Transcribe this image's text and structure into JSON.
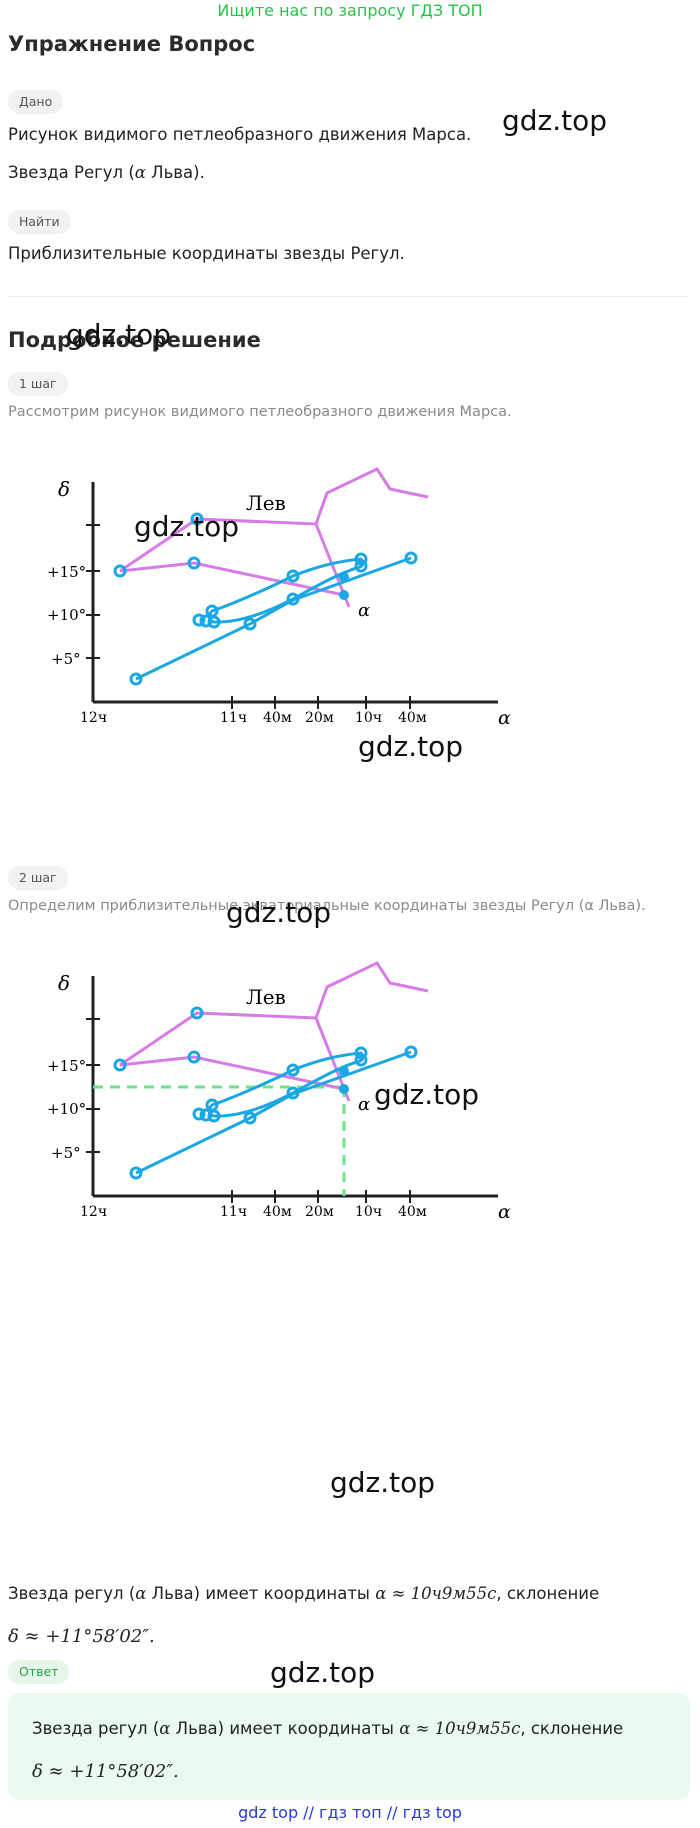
{
  "top_link": "Ищите нас по запросу ГДЗ ТОП",
  "title": "Упражнение Вопрос",
  "given_label": "Дано",
  "given_line1": "Рисунок видимого петлеобразного движения Марса.",
  "given_line2_pre": "Звезда Регул (",
  "given_alpha": "α",
  "given_line2_post": " Льва).",
  "find_label": "Найти",
  "find_text": "Приблизительные координаты звезды Регул.",
  "solution_title": "Подробное решение",
  "step1_label": "1 шаг",
  "step1_text": "Рассмотрим рисунок видимого петлеобразного движения Марса.",
  "step2_label": "2 шаг",
  "step2_text": "Определим приблизительные экваториальные координаты звезды Регул (α Льва).",
  "result_pre": "Звезда регул (",
  "result_alpha": "α",
  "result_mid": " Льва) имеет координаты ",
  "result_coord": "α ≈ 10ч9м55с",
  "result_post": ", склонение",
  "result_decl": "δ ≈ +11°58′02″.",
  "answer_label": "Ответ",
  "answer_pre": "Звезда регул (",
  "answer_alpha": "α",
  "answer_mid": " Льва) имеет координаты ",
  "answer_coord": "α ≈ 10ч9м55с",
  "answer_post": ", склонение",
  "answer_decl": "δ ≈ +11°58′02″.",
  "watermark": "gdz.top",
  "footer": "gdz top  //  гдз топ  //  гдз top",
  "chart": {
    "y_axis_label": "δ",
    "x_axis_label": "α",
    "y_ticks": [
      "+15°",
      "+10°",
      "+5°"
    ],
    "x_ticks": [
      "12ч",
      "11ч",
      "40м",
      "20м",
      "10ч",
      "40м"
    ],
    "constellation_label": "Лев",
    "star_label": "α",
    "colors": {
      "axis": "#222222",
      "constellation": "#d77be6",
      "mars": "#1aa7e4",
      "guide": "#6ee28c"
    }
  }
}
